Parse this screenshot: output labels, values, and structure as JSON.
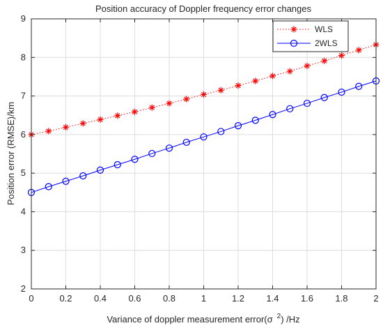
{
  "chart_data": {
    "type": "line",
    "title": "Position accuracy of Doppler frequency error changes",
    "xlabel": "Variance of doppler measurement error(σ",
    "xlabel_superscript": "2",
    "xlabel_suffix": ") /Hz",
    "ylabel": "Position error (RMSE)/km",
    "xlim": [
      0,
      2
    ],
    "ylim": [
      2,
      9
    ],
    "x_ticks": [
      "0",
      "0.2",
      "0.4",
      "0.6",
      "0.8",
      "1",
      "1.2",
      "1.4",
      "1.6",
      "1.8",
      "2"
    ],
    "y_ticks": [
      "2",
      "3",
      "4",
      "5",
      "6",
      "7",
      "8",
      "9"
    ],
    "grid": true,
    "legend_position": "top-right",
    "x": [
      0,
      0.1,
      0.2,
      0.3,
      0.4,
      0.5,
      0.6,
      0.7,
      0.8,
      0.9,
      1.0,
      1.1,
      1.2,
      1.3,
      1.4,
      1.5,
      1.6,
      1.7,
      1.8,
      1.9,
      2.0
    ],
    "series": [
      {
        "name": "WLS",
        "color": "#ff0000",
        "line_style": "dotted",
        "marker": "asterisk",
        "values": [
          6.0,
          6.09,
          6.19,
          6.29,
          6.39,
          6.49,
          6.59,
          6.7,
          6.81,
          6.92,
          7.04,
          7.15,
          7.27,
          7.39,
          7.52,
          7.64,
          7.78,
          7.91,
          8.05,
          8.19,
          8.33
        ]
      },
      {
        "name": "2WLS",
        "color": "#0000ff",
        "line_style": "solid",
        "marker": "circle",
        "values": [
          4.5,
          4.65,
          4.79,
          4.93,
          5.08,
          5.22,
          5.36,
          5.51,
          5.65,
          5.8,
          5.94,
          6.08,
          6.23,
          6.37,
          6.52,
          6.67,
          6.81,
          6.96,
          7.1,
          7.25,
          7.39
        ]
      }
    ]
  }
}
